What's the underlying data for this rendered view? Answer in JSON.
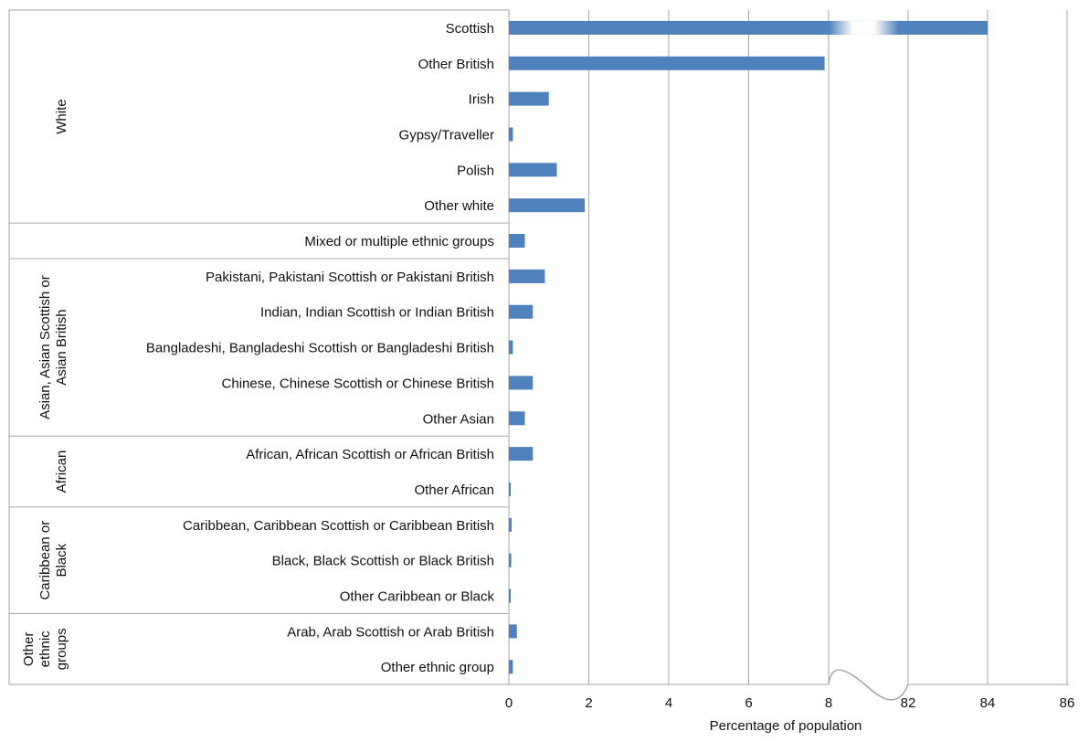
{
  "chart_data": {
    "type": "bar",
    "orientation": "horizontal",
    "xlabel": "Percentage of population",
    "x_axis_break": {
      "from": 8,
      "to": 80
    },
    "xticks": [
      0,
      2,
      4,
      6,
      8,
      82,
      84,
      86
    ],
    "grid": true,
    "bar_color": "#4f81bd",
    "groups": [
      {
        "label": "White",
        "categories": [
          "Scottish",
          "Other British",
          "Irish",
          "Gypsy/Traveller",
          "Polish",
          "Other white"
        ]
      },
      {
        "label": "",
        "categories": [
          "Mixed or multiple ethnic groups"
        ]
      },
      {
        "label": "Asian, Asian Scottish or Asian British",
        "label_lines": [
          "Asian, Asian Scottish or",
          "Asian British"
        ],
        "categories": [
          "Pakistani, Pakistani Scottish or Pakistani British",
          "Indian, Indian Scottish or Indian British",
          "Bangladeshi, Bangladeshi Scottish or Bangladeshi British",
          "Chinese, Chinese Scottish or Chinese British",
          "Other Asian"
        ]
      },
      {
        "label": "African",
        "categories": [
          "African, African Scottish or African British",
          "Other African"
        ]
      },
      {
        "label": "Caribbean or Black",
        "label_lines": [
          "Caribbean or",
          "Black"
        ],
        "categories": [
          "Caribbean, Caribbean Scottish or Caribbean British",
          "Black, Black Scottish or Black British",
          "Other Caribbean or Black"
        ]
      },
      {
        "label": "Other ethnic groups",
        "label_lines": [
          "Other",
          "ethnic",
          "groups"
        ],
        "categories": [
          "Arab, Arab Scottish or Arab British",
          "Other ethnic group"
        ]
      }
    ],
    "values": [
      84.0,
      7.9,
      1.0,
      0.1,
      1.2,
      1.9,
      0.4,
      0.9,
      0.6,
      0.1,
      0.6,
      0.4,
      0.6,
      0.03,
      0.07,
      0.06,
      0.03,
      0.2,
      0.1
    ]
  }
}
